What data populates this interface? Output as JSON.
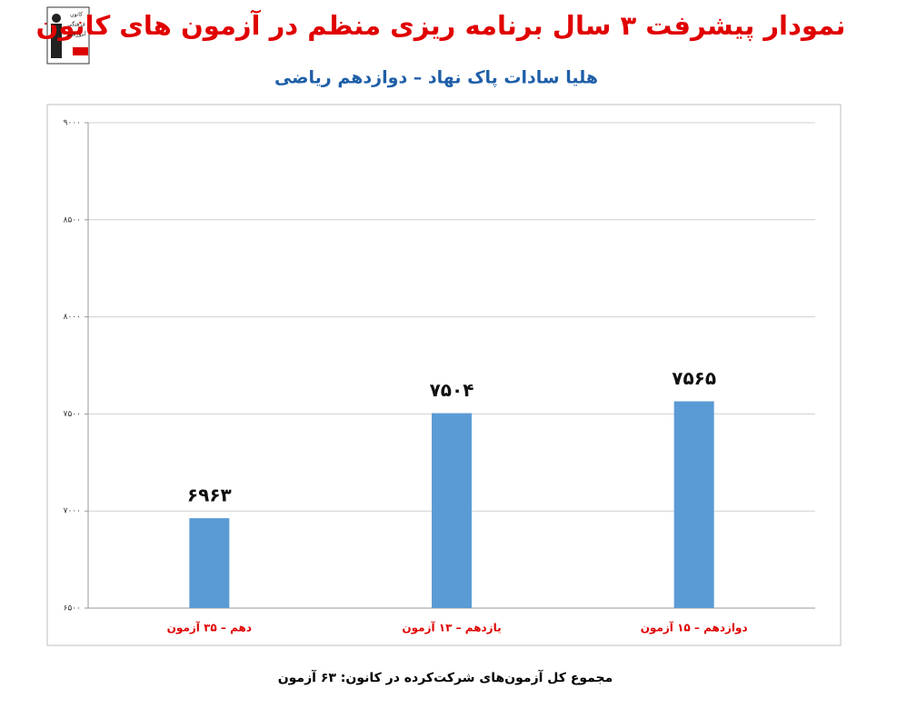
{
  "logo_text": [
    "کانون",
    "فرهنگی",
    "آموزشی",
    "قلم‌چی"
  ],
  "chart_data": {
    "type": "bar",
    "title": "نمودار پیشرفت ۳ سال برنامه ریزی منظم در آزمون های کانون",
    "subtitle": "هلیا سادات پاک نهاد – دوازدهم ریاضی",
    "categories": [
      "دهم – ۳۵ آزمون",
      "یازدهم – ۱۳ آزمون",
      "دوازدهم – ۱۵ آزمون"
    ],
    "values": [
      6963,
      7504,
      7565
    ],
    "value_labels": [
      "۶۹۶۳",
      "۷۵۰۴",
      "۷۵۶۵"
    ],
    "color": "#5b9bd5",
    "ylim": [
      6500,
      9000
    ],
    "yticks": [
      {
        "value": 6500,
        "label": "۶۵۰۰"
      },
      {
        "value": 7000,
        "label": "۷۰۰۰"
      },
      {
        "value": 7500,
        "label": "۷۵۰۰"
      },
      {
        "value": 8000,
        "label": "۸۰۰۰"
      },
      {
        "value": 8500,
        "label": "۸۵۰۰"
      },
      {
        "value": 9000,
        "label": "۹۰۰۰"
      }
    ],
    "grid": true,
    "footnote": "مجموع کل آزمون‌های شرکت‌کرده در کانون:  ۶۳ آزمون"
  }
}
